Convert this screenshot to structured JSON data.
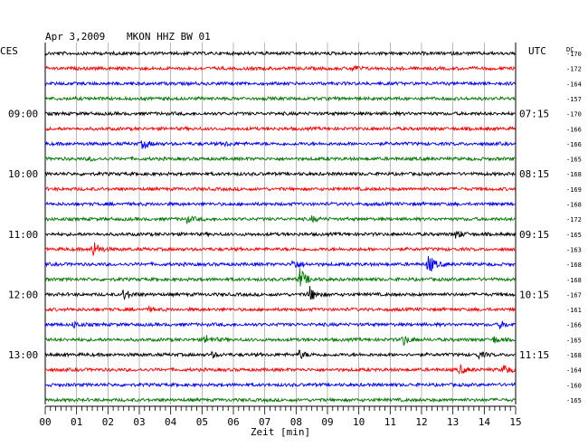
{
  "header": {
    "date": "Apr 3,2009",
    "station": "MKON HHZ BW 01",
    "left_zone": "CES",
    "right_zone": "UTC",
    "dc_label": "DC"
  },
  "colors": {
    "background": "#ffffff",
    "grid": "#000000",
    "traces": [
      "#000000",
      "#ff0000",
      "#0000ff",
      "#007700"
    ]
  },
  "chart_data": {
    "type": "line",
    "xlabel": "Zeit [min]",
    "xlim": [
      0,
      15
    ],
    "x_ticks": [
      "00",
      "01",
      "02",
      "03",
      "04",
      "05",
      "06",
      "07",
      "08",
      "09",
      "10",
      "11",
      "12",
      "13",
      "14",
      "15"
    ],
    "rows_per_hour": 4,
    "left_time_labels": [
      {
        "row": 4,
        "label": "09:00"
      },
      {
        "row": 8,
        "label": "10:00"
      },
      {
        "row": 12,
        "label": "11:00"
      },
      {
        "row": 16,
        "label": "12:00"
      },
      {
        "row": 20,
        "label": "13:00"
      }
    ],
    "right_time_labels": [
      {
        "row": 4,
        "label": "07:15"
      },
      {
        "row": 8,
        "label": "08:15"
      },
      {
        "row": 12,
        "label": "09:15"
      },
      {
        "row": 16,
        "label": "10:15"
      },
      {
        "row": 20,
        "label": "11:15"
      }
    ],
    "dc_offsets": [
      -170,
      -172,
      -164,
      -157,
      -170,
      -166,
      -166,
      -165,
      -168,
      -169,
      -168,
      -172,
      -165,
      -163,
      -168,
      -168,
      -167,
      -161,
      -166,
      -165,
      -168,
      -164,
      -160,
      -165
    ],
    "events": [
      {
        "row": 1,
        "minute": 9.8,
        "amp": 0.35
      },
      {
        "row": 6,
        "minute": 3.1,
        "amp": 0.6
      },
      {
        "row": 6,
        "minute": 5.7,
        "amp": 0.25
      },
      {
        "row": 7,
        "minute": 1.4,
        "amp": 0.2
      },
      {
        "row": 11,
        "minute": 4.5,
        "amp": 0.45
      },
      {
        "row": 11,
        "minute": 8.5,
        "amp": 0.3
      },
      {
        "row": 12,
        "minute": 13.1,
        "amp": 0.55
      },
      {
        "row": 13,
        "minute": 1.5,
        "amp": 1.2
      },
      {
        "row": 14,
        "minute": 7.9,
        "amp": 0.8
      },
      {
        "row": 14,
        "minute": 12.2,
        "amp": 1.4
      },
      {
        "row": 15,
        "minute": 8.1,
        "amp": 1.5
      },
      {
        "row": 16,
        "minute": 2.5,
        "amp": 0.7
      },
      {
        "row": 16,
        "minute": 8.4,
        "amp": 1.1
      },
      {
        "row": 17,
        "minute": 3.3,
        "amp": 0.2
      },
      {
        "row": 18,
        "minute": 0.9,
        "amp": 0.4
      },
      {
        "row": 18,
        "minute": 14.5,
        "amp": 0.4
      },
      {
        "row": 19,
        "minute": 5.1,
        "amp": 0.6
      },
      {
        "row": 19,
        "minute": 11.4,
        "amp": 0.7
      },
      {
        "row": 19,
        "minute": 14.3,
        "amp": 0.4
      },
      {
        "row": 20,
        "minute": 5.3,
        "amp": 0.3
      },
      {
        "row": 20,
        "minute": 8.1,
        "amp": 0.5
      },
      {
        "row": 20,
        "minute": 13.8,
        "amp": 0.4
      },
      {
        "row": 21,
        "minute": 13.2,
        "amp": 0.6
      },
      {
        "row": 21,
        "minute": 14.6,
        "amp": 0.7
      }
    ],
    "grid": "on"
  }
}
